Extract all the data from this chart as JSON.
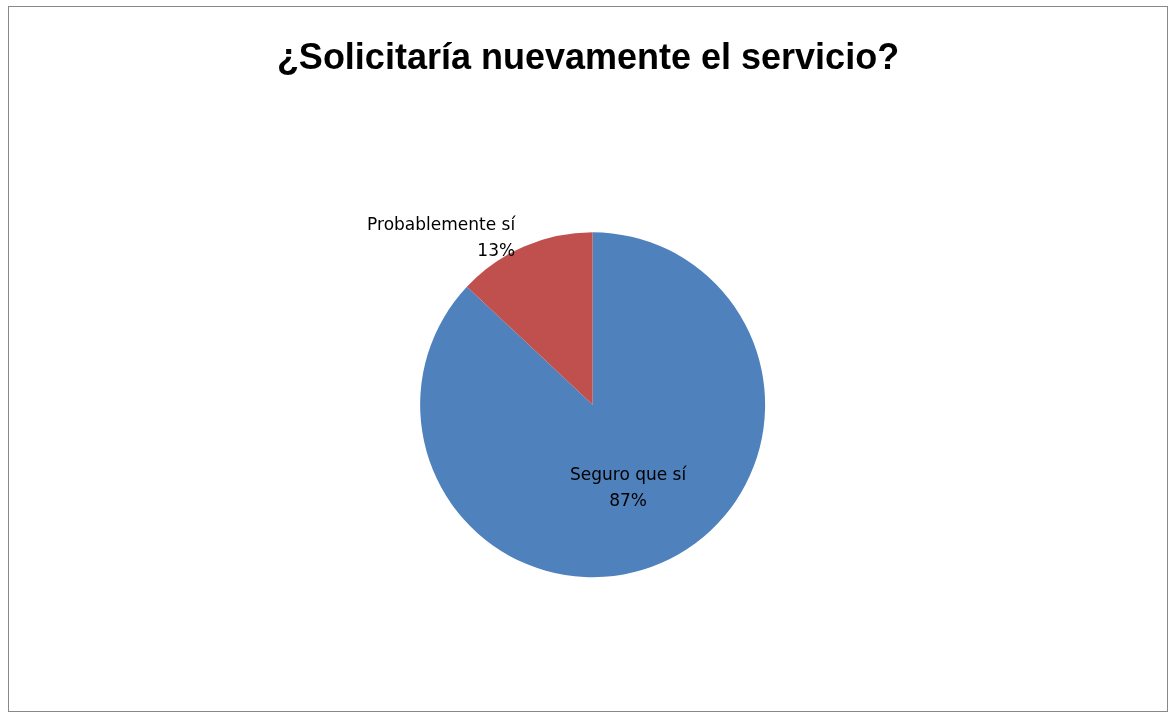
{
  "chart_data": {
    "type": "pie",
    "title": "¿Solicitaría nuevamente el servicio?",
    "categories": [
      "Seguro que sí",
      "Probablemente sí"
    ],
    "values": [
      87,
      13
    ],
    "value_labels": [
      "87%",
      "13%"
    ],
    "colors": [
      "#4f81bd",
      "#c0504d"
    ],
    "legend": false
  }
}
